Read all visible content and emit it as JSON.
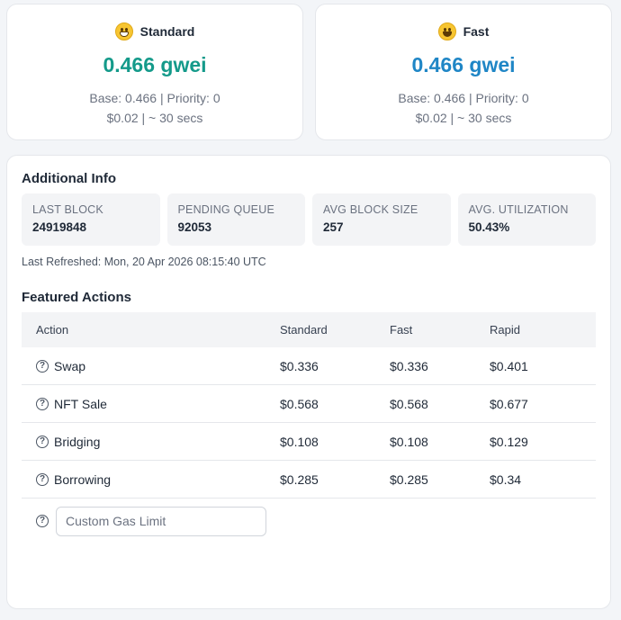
{
  "tiers": [
    {
      "name": "Standard",
      "price": "0.466 gwei",
      "base_priority": "Base: 0.466 | Priority: 0",
      "cost_time": "$0.02 | ~ 30 secs"
    },
    {
      "name": "Fast",
      "price": "0.466 gwei",
      "base_priority": "Base: 0.466 | Priority: 0",
      "cost_time": "$0.02 | ~ 30 secs"
    }
  ],
  "additional_info": {
    "title": "Additional Info",
    "stats": [
      {
        "label": "LAST BLOCK",
        "value": "24919848"
      },
      {
        "label": "PENDING QUEUE",
        "value": "92053"
      },
      {
        "label": "AVG BLOCK SIZE",
        "value": "257"
      },
      {
        "label": "AVG. UTILIZATION",
        "value": "50.43%"
      }
    ],
    "last_refreshed": "Last Refreshed: Mon, 20 Apr 2026 08:15:40 UTC"
  },
  "featured_actions": {
    "title": "Featured Actions",
    "columns": [
      "Action",
      "Standard",
      "Fast",
      "Rapid"
    ],
    "rows": [
      {
        "action": "Swap",
        "standard": "$0.336",
        "fast": "$0.336",
        "rapid": "$0.401"
      },
      {
        "action": "NFT Sale",
        "standard": "$0.568",
        "fast": "$0.568",
        "rapid": "$0.677"
      },
      {
        "action": "Bridging",
        "standard": "$0.108",
        "fast": "$0.108",
        "rapid": "$0.129"
      },
      {
        "action": "Borrowing",
        "standard": "$0.285",
        "fast": "$0.285",
        "rapid": "$0.34"
      }
    ],
    "custom_gas_placeholder": "Custom Gas Limit",
    "custom_gas_value": ""
  },
  "icons": {
    "standard": "grinning-face-icon",
    "fast": "smiling-face-icon",
    "help": "question-circle-icon"
  },
  "colors": {
    "standard_price": "#149a8a",
    "fast_price": "#1f86c6"
  }
}
